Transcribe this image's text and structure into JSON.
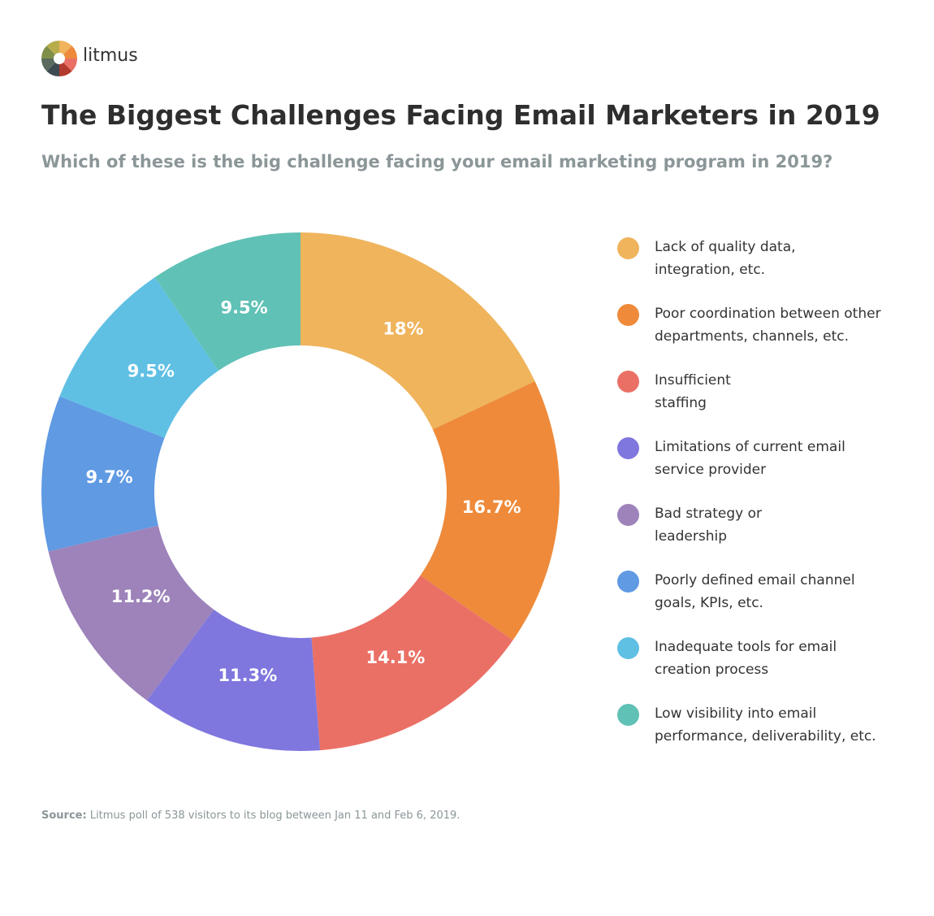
{
  "logo": "litmus",
  "source_label": "Source:",
  "source_text": "Litmus poll of 538 visitors to its blog between Jan 11 and Feb 6, 2019.",
  "chart_data": {
    "type": "donut",
    "title": "The Biggest Challenges Facing Email Marketers in 2019",
    "subtitle": "Which of these is the big challenge facing your email marketing program in 2019?",
    "categories": [
      "Lack of quality data,\nintegration, etc.",
      "Poor coordination between other\ndepartments, channels, etc.",
      "Insufficient\nstaffing",
      "Limitations of current email\nservice provider",
      "Bad strategy or\nleadership",
      "Poorly defined email channel\ngoals, KPIs, etc.",
      "Inadequate tools for email\ncreation process",
      "Low visibility into email\nperformance, deliverability, etc."
    ],
    "values": [
      18,
      16.7,
      14.1,
      11.3,
      11.2,
      9.7,
      9.5,
      9.5
    ],
    "value_labels": [
      "18%",
      "16.7%",
      "14.1%",
      "11.3%",
      "11.2%",
      "9.7%",
      "9.5%",
      "9.5%"
    ],
    "colors": [
      "#efb45c",
      "#ee8a3a",
      "#ea7066",
      "#7f77de",
      "#9d83ba",
      "#5f9ae3",
      "#5fc0e3",
      "#60c1b6"
    ],
    "legend": "right"
  }
}
